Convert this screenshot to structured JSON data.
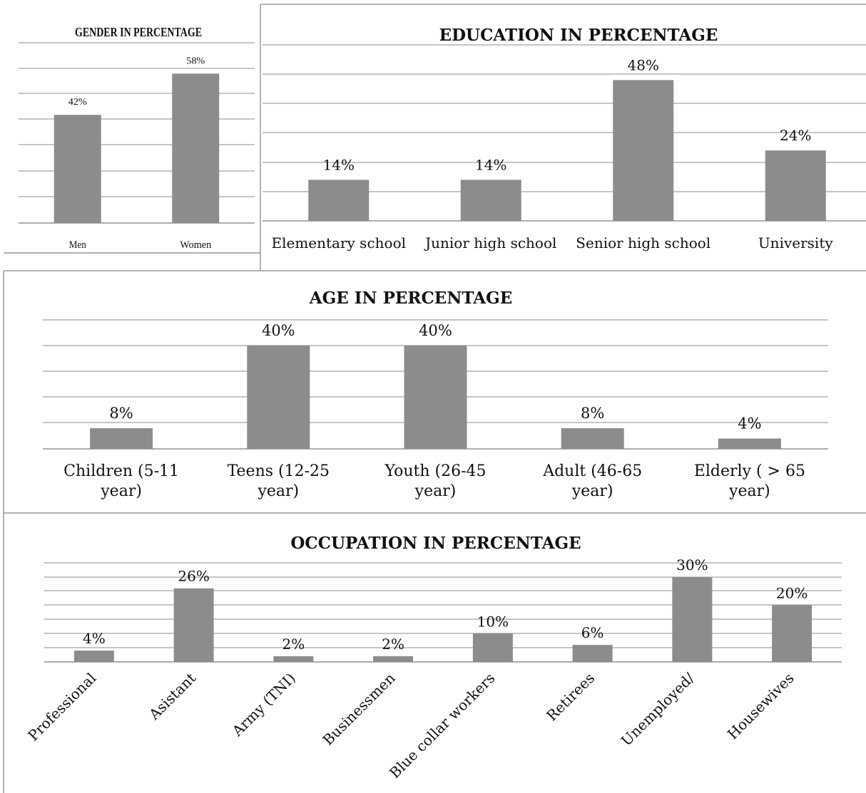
{
  "chart_data": [
    {
      "id": "gender",
      "type": "bar",
      "title": "GENDER IN PERCENTAGE",
      "categories": [
        "Men",
        "Women"
      ],
      "values": [
        42,
        58
      ],
      "value_labels": [
        "42%",
        "58%"
      ],
      "ylim": [
        0,
        70
      ],
      "grid": true,
      "legend": "none",
      "bar_color": "#8c8c8c"
    },
    {
      "id": "education",
      "type": "bar",
      "title": "EDUCATION IN PERCENTAGE",
      "categories": [
        "Elementary school",
        "Junior high school",
        "Senior high school",
        "University"
      ],
      "values": [
        14,
        14,
        48,
        24
      ],
      "value_labels": [
        "14%",
        "14%",
        "48%",
        "24%"
      ],
      "ylim": [
        0,
        60
      ],
      "grid": true,
      "legend": "none",
      "bar_color": "#8c8c8c"
    },
    {
      "id": "age",
      "type": "bar",
      "title": "AGE IN PERCENTAGE",
      "categories": [
        [
          "Children (5-11",
          "year)"
        ],
        [
          "Teens (12-25",
          "year)"
        ],
        [
          "Youth (26-45",
          "year)"
        ],
        [
          "Adult (46-65",
          "year)"
        ],
        [
          "Elderly ( > 65",
          "year)"
        ]
      ],
      "values": [
        8,
        40,
        40,
        8,
        4
      ],
      "value_labels": [
        "8%",
        "40%",
        "40%",
        "8%",
        "4%"
      ],
      "ylim": [
        0,
        50
      ],
      "grid": true,
      "legend": "none",
      "bar_color": "#8c8c8c"
    },
    {
      "id": "occupation",
      "type": "bar",
      "title": "OCCUPATION IN PERCENTAGE",
      "categories": [
        "Professional",
        "Asistant",
        "Army (TNI)",
        "Businessmen",
        "Blue collar workers",
        "Retirees",
        "Unemployed/",
        "Housewives"
      ],
      "values": [
        4,
        26,
        2,
        2,
        10,
        6,
        30,
        20
      ],
      "value_labels": [
        "4%",
        "26%",
        "2%",
        "2%",
        "10%",
        "6%",
        "30%",
        "20%"
      ],
      "ylim": [
        0,
        35
      ],
      "grid": true,
      "legend": "none",
      "bar_color": "#8c8c8c"
    }
  ]
}
